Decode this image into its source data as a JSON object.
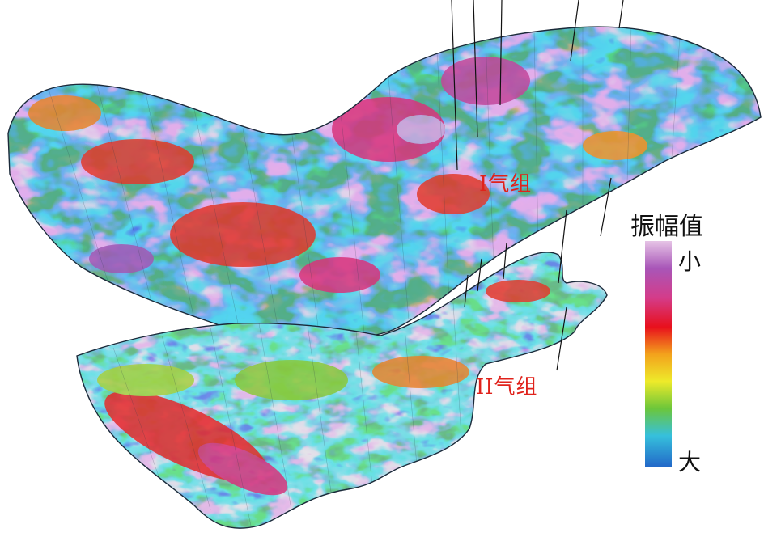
{
  "labels": {
    "upper_zone": "I气组",
    "lower_zone": "II气组"
  },
  "legend": {
    "title": "振幅值",
    "top_label": "小",
    "bottom_label": "大",
    "colors_top_to_bottom": [
      "#e6c4e6",
      "#a856b8",
      "#d43c8a",
      "#e8101c",
      "#f3a21c",
      "#eeea2a",
      "#6cc63a",
      "#36c0dc",
      "#2266c8"
    ]
  },
  "map_colors": {
    "low": "#2a8fd8",
    "mid": "#6fcf3a",
    "high": "#e8262a",
    "peak": "#a14bb0",
    "contour": "#1b2a3a"
  }
}
